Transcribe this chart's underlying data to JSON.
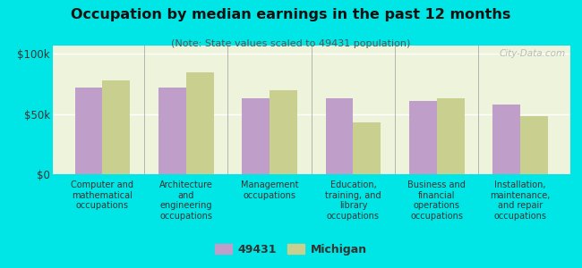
{
  "title": "Occupation by median earnings in the past 12 months",
  "subtitle": "(Note: State values scaled to 49431 population)",
  "categories": [
    "Computer and\nmathematical\noccupations",
    "Architecture\nand\nengineering\noccupations",
    "Management\noccupations",
    "Education,\ntraining, and\nlibrary\noccupations",
    "Business and\nfinancial\noperations\noccupations",
    "Installation,\nmaintenance,\nand repair\noccupations"
  ],
  "values_49431": [
    72000,
    72000,
    63000,
    63000,
    61000,
    58000
  ],
  "values_michigan": [
    78000,
    85000,
    70000,
    43000,
    63000,
    48000
  ],
  "color_49431": "#bf9fca",
  "color_michigan": "#c8cf8f",
  "background_outer": "#00e5e5",
  "background_inner": "#eef4dc",
  "yticks": [
    0,
    50000,
    100000
  ],
  "ytick_labels": [
    "$0",
    "$50k",
    "$100k"
  ],
  "ylim": [
    0,
    107000
  ],
  "legend_label_1": "49431",
  "legend_label_2": "Michigan",
  "watermark": "City-Data.com"
}
